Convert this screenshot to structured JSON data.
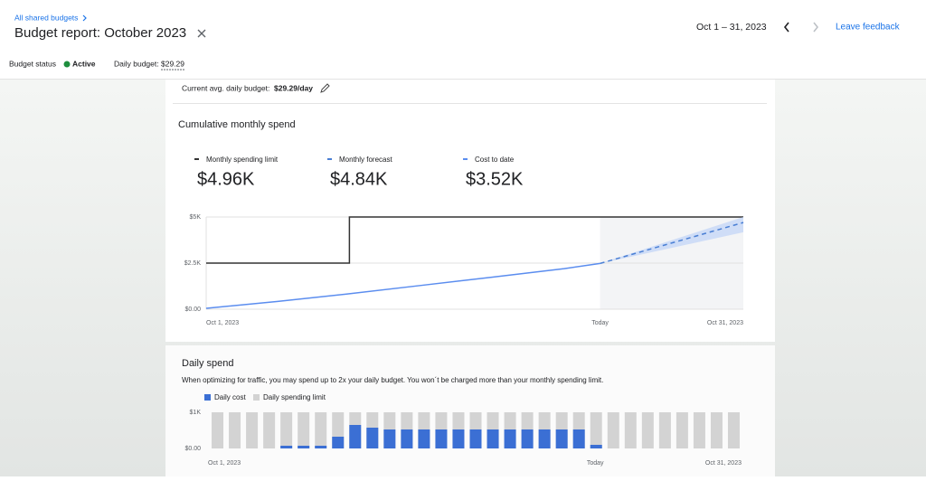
{
  "header": {
    "breadcrumb": "All shared budgets",
    "title": "Budget report: October 2023",
    "date_range": "Oct 1 – 31, 2023",
    "feedback": "Leave feedback",
    "status_label": "Budget status",
    "status": "Active",
    "daily_budget_label": "Daily budget:",
    "daily_budget": "$29.29"
  },
  "card": {
    "avg_label": "Current avg. daily budget:",
    "avg_value": "$29.29/day"
  },
  "chart_data": [
    {
      "type": "line",
      "title": "Cumulative monthly spend",
      "headline": [
        "$4.96K",
        "$4.84K",
        "$3.52K"
      ],
      "xlim": [
        1,
        31
      ],
      "xticks": [
        {
          "value": 1,
          "label": "Oct 1, 2023"
        },
        {
          "value": 23,
          "label": "Today"
        },
        {
          "value": 31,
          "label": "Oct 31, 2023"
        }
      ],
      "ylim": [
        0,
        5000
      ],
      "yticks": [
        {
          "value": 5000,
          "label": "$5K"
        },
        {
          "value": 2500,
          "label": "$2.5K"
        },
        {
          "value": 0,
          "label": "$0.00"
        }
      ],
      "grid": true,
      "series": [
        {
          "name": "Monthly spending limit",
          "color": "#333333",
          "style": "solid",
          "x": [
            1,
            9,
            9,
            31
          ],
          "values": [
            2500,
            2500,
            5000,
            5000
          ]
        },
        {
          "name": "Monthly forecast",
          "color": "#4a7fd4",
          "style": "dashed",
          "x": [
            23,
            31
          ],
          "values": [
            2480,
            4700
          ],
          "lower": [
            2480,
            4170
          ],
          "upper": [
            2480,
            5000
          ]
        },
        {
          "name": "Cost to date",
          "color": "#5b8def",
          "style": "solid",
          "x": [
            1,
            5,
            9,
            13,
            17,
            21,
            23
          ],
          "values": [
            50,
            420,
            840,
            1290,
            1740,
            2200,
            2480
          ]
        }
      ]
    },
    {
      "type": "bar",
      "title": "Daily spend",
      "subtitle": "When optimizing for traffic, you may spend up to 2x your daily budget. You won´t be charged more than your monthly spending limit.",
      "categories": [
        "Oct 1, 2023",
        null,
        null,
        null,
        null,
        null,
        null,
        null,
        null,
        null,
        null,
        null,
        null,
        null,
        null,
        null,
        null,
        null,
        null,
        null,
        null,
        null,
        "Today",
        null,
        null,
        null,
        null,
        null,
        null,
        null,
        "Oct 31, 2023"
      ],
      "ylim": [
        0,
        1000
      ],
      "yticks": [
        {
          "value": 1000,
          "label": "$1K"
        },
        {
          "value": 0,
          "label": "$0.00"
        }
      ],
      "series": [
        {
          "name": "Daily cost",
          "color": "#3b6fd4",
          "values": [
            0,
            0,
            0,
            0,
            75,
            75,
            75,
            325,
            650,
            575,
            525,
            525,
            525,
            525,
            525,
            525,
            525,
            525,
            525,
            525,
            525,
            525,
            100,
            null,
            null,
            null,
            null,
            null,
            null,
            null,
            null
          ]
        },
        {
          "name": "Daily spending limit",
          "color": "#d3d3d3",
          "values": [
            1000,
            1000,
            1000,
            1000,
            1000,
            1000,
            1000,
            1000,
            1000,
            1000,
            1000,
            1000,
            1000,
            1000,
            1000,
            1000,
            1000,
            1000,
            1000,
            1000,
            1000,
            1000,
            1000,
            1000,
            1000,
            1000,
            1000,
            1000,
            1000,
            1000,
            1000
          ]
        }
      ]
    }
  ]
}
